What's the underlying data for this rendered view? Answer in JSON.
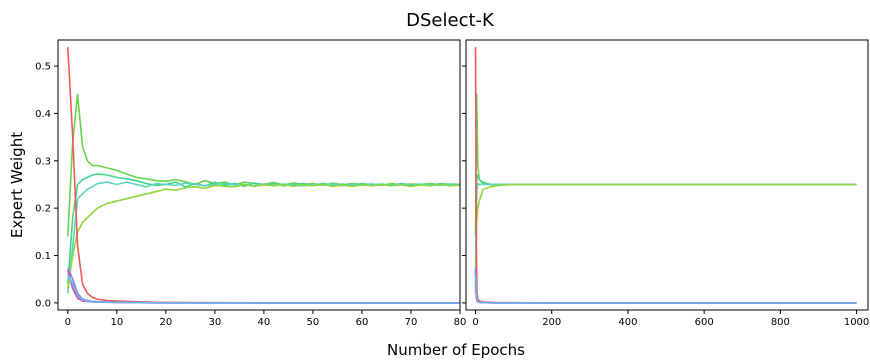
{
  "figure": {
    "title": "DSelect-K",
    "ylabel": "Expert Weight",
    "xlabel": "Number of Epochs"
  },
  "chart_data": [
    {
      "type": "line",
      "xlim": [
        -2,
        80
      ],
      "ylim": [
        -0.015,
        0.555
      ],
      "xticks": [
        0,
        10,
        20,
        30,
        40,
        50,
        60,
        70,
        80
      ],
      "yticks": [
        0.0,
        0.1,
        0.2,
        0.3,
        0.4,
        0.5
      ],
      "ytick_labels": [
        "0.0",
        "0.1",
        "0.2",
        "0.3",
        "0.4",
        "0.5"
      ],
      "grid": false,
      "series": [
        {
          "color": "#66d44a",
          "x": [
            0,
            1,
            2,
            3,
            4,
            5,
            6,
            8,
            10,
            12,
            14,
            16,
            18,
            20,
            22,
            24,
            26,
            28,
            30,
            32,
            34,
            36,
            38,
            40,
            42,
            44,
            46,
            48,
            50,
            52,
            54,
            56,
            58,
            60,
            62,
            64,
            66,
            68,
            70,
            72,
            74,
            76,
            78,
            80
          ],
          "y": [
            0.14,
            0.34,
            0.44,
            0.33,
            0.3,
            0.29,
            0.29,
            0.285,
            0.28,
            0.272,
            0.265,
            0.262,
            0.258,
            0.257,
            0.26,
            0.256,
            0.25,
            0.258,
            0.252,
            0.255,
            0.249,
            0.255,
            0.252,
            0.25,
            0.254,
            0.249,
            0.253,
            0.25,
            0.252,
            0.248,
            0.253,
            0.249,
            0.252,
            0.25,
            0.251,
            0.248,
            0.252,
            0.249,
            0.251,
            0.25,
            0.252,
            0.249,
            0.251,
            0.25
          ]
        },
        {
          "color": "#44d48a",
          "x": [
            0,
            1,
            2,
            3,
            4,
            5,
            6,
            8,
            10,
            12,
            14,
            16,
            18,
            20,
            22,
            24,
            26,
            28,
            30,
            32,
            34,
            36,
            38,
            40,
            42,
            44,
            46,
            48,
            50,
            52,
            54,
            56,
            58,
            60,
            62,
            64,
            66,
            68,
            70,
            72,
            74,
            76,
            78,
            80
          ],
          "y": [
            0.04,
            0.18,
            0.25,
            0.26,
            0.265,
            0.27,
            0.272,
            0.27,
            0.265,
            0.262,
            0.258,
            0.252,
            0.248,
            0.25,
            0.255,
            0.245,
            0.252,
            0.247,
            0.255,
            0.248,
            0.252,
            0.246,
            0.253,
            0.249,
            0.252,
            0.247,
            0.25,
            0.252,
            0.248,
            0.252,
            0.249,
            0.251,
            0.247,
            0.252,
            0.249,
            0.251,
            0.248,
            0.252,
            0.249,
            0.25,
            0.248,
            0.252,
            0.25,
            0.249
          ]
        },
        {
          "color": "#5ad6c0",
          "x": [
            0,
            1,
            2,
            3,
            4,
            5,
            6,
            8,
            10,
            12,
            14,
            16,
            18,
            20,
            22,
            24,
            26,
            28,
            30,
            32,
            34,
            36,
            38,
            40,
            42,
            44,
            46,
            48,
            50,
            52,
            54,
            56,
            58,
            60,
            62,
            64,
            66,
            68,
            70,
            72,
            74,
            76,
            78,
            80
          ],
          "y": [
            0.02,
            0.12,
            0.22,
            0.23,
            0.24,
            0.245,
            0.252,
            0.255,
            0.25,
            0.255,
            0.25,
            0.245,
            0.252,
            0.25,
            0.248,
            0.253,
            0.25,
            0.247,
            0.25,
            0.252,
            0.249,
            0.25,
            0.247,
            0.251,
            0.248,
            0.251,
            0.249,
            0.247,
            0.25,
            0.248,
            0.251,
            0.247,
            0.25,
            0.248,
            0.251,
            0.249,
            0.248,
            0.25,
            0.248,
            0.251,
            0.249,
            0.248,
            0.25,
            0.248
          ]
        },
        {
          "color": "#8fd83c",
          "x": [
            0,
            1,
            2,
            3,
            4,
            5,
            6,
            8,
            10,
            12,
            14,
            16,
            18,
            20,
            22,
            24,
            26,
            28,
            30,
            32,
            34,
            36,
            38,
            40,
            42,
            44,
            46,
            48,
            50,
            52,
            54,
            56,
            58,
            60,
            62,
            64,
            66,
            68,
            70,
            72,
            74,
            76,
            78,
            80
          ],
          "y": [
            0.03,
            0.1,
            0.15,
            0.17,
            0.18,
            0.19,
            0.2,
            0.21,
            0.215,
            0.22,
            0.225,
            0.23,
            0.235,
            0.24,
            0.238,
            0.243,
            0.245,
            0.242,
            0.248,
            0.246,
            0.245,
            0.25,
            0.246,
            0.249,
            0.247,
            0.25,
            0.246,
            0.249,
            0.247,
            0.25,
            0.246,
            0.249,
            0.246,
            0.249,
            0.247,
            0.25,
            0.247,
            0.249,
            0.246,
            0.249,
            0.247,
            0.25,
            0.247,
            0.249
          ]
        },
        {
          "color": "#ee5a5a",
          "x": [
            0,
            1,
            2,
            3,
            4,
            5,
            6,
            8,
            10,
            15,
            20,
            30,
            40,
            50,
            60,
            70,
            80
          ],
          "y": [
            0.54,
            0.35,
            0.12,
            0.04,
            0.02,
            0.012,
            0.008,
            0.005,
            0.004,
            0.002,
            0.001,
            0.0005,
            0.0,
            0.0,
            0.0,
            0.0,
            0.0
          ]
        },
        {
          "color": "#e0458a",
          "x": [
            0,
            1,
            2,
            3,
            5,
            10,
            20,
            40,
            60,
            80
          ],
          "y": [
            0.07,
            0.03,
            0.01,
            0.004,
            0.002,
            0.001,
            0.0,
            0.0,
            0.0,
            0.0
          ]
        },
        {
          "color": "#8a7ff0",
          "x": [
            0,
            1,
            2,
            3,
            5,
            10,
            20,
            40,
            60,
            80
          ],
          "y": [
            0.075,
            0.05,
            0.02,
            0.008,
            0.003,
            0.001,
            0.0,
            0.0,
            0.0,
            0.0
          ]
        },
        {
          "color": "#6ab4f0",
          "x": [
            0,
            1,
            2,
            3,
            5,
            10,
            20,
            40,
            60,
            80
          ],
          "y": [
            0.06,
            0.04,
            0.015,
            0.006,
            0.002,
            0.001,
            0.0,
            0.0,
            0.0,
            0.0
          ]
        }
      ]
    },
    {
      "type": "line",
      "xlim": [
        -25,
        1030
      ],
      "ylim": [
        -0.015,
        0.555
      ],
      "xticks": [
        0,
        200,
        400,
        600,
        800,
        1000
      ],
      "yticks": [
        0.0,
        0.1,
        0.2,
        0.3,
        0.4,
        0.5
      ],
      "ytick_labels": [],
      "grid": false,
      "series": [
        {
          "color": "#66d44a",
          "x": [
            0,
            3,
            6,
            10,
            20,
            40,
            60,
            100,
            150,
            200,
            300,
            400,
            500,
            600,
            700,
            800,
            900,
            1000
          ],
          "y": [
            0.14,
            0.44,
            0.29,
            0.26,
            0.255,
            0.25,
            0.25,
            0.25,
            0.25,
            0.25,
            0.25,
            0.25,
            0.25,
            0.25,
            0.25,
            0.25,
            0.25,
            0.25
          ]
        },
        {
          "color": "#44d48a",
          "x": [
            0,
            3,
            6,
            10,
            20,
            40,
            60,
            100,
            150,
            200,
            300,
            400,
            500,
            600,
            700,
            800,
            900,
            1000
          ],
          "y": [
            0.04,
            0.26,
            0.27,
            0.26,
            0.252,
            0.25,
            0.25,
            0.25,
            0.25,
            0.25,
            0.25,
            0.25,
            0.25,
            0.25,
            0.25,
            0.25,
            0.25,
            0.25
          ]
        },
        {
          "color": "#5ad6c0",
          "x": [
            0,
            3,
            6,
            10,
            20,
            40,
            60,
            100,
            150,
            200,
            300,
            400,
            500,
            600,
            700,
            800,
            900,
            1000
          ],
          "y": [
            0.02,
            0.23,
            0.252,
            0.25,
            0.25,
            0.25,
            0.25,
            0.25,
            0.25,
            0.25,
            0.25,
            0.25,
            0.25,
            0.25,
            0.25,
            0.25,
            0.25,
            0.25
          ]
        },
        {
          "color": "#8fd83c",
          "x": [
            0,
            3,
            6,
            10,
            20,
            40,
            60,
            100,
            150,
            200,
            300,
            400,
            500,
            600,
            700,
            800,
            900,
            1000
          ],
          "y": [
            0.03,
            0.17,
            0.2,
            0.215,
            0.24,
            0.245,
            0.248,
            0.25,
            0.25,
            0.25,
            0.25,
            0.25,
            0.25,
            0.25,
            0.25,
            0.25,
            0.25,
            0.25
          ]
        },
        {
          "color": "#ee5a5a",
          "x": [
            0,
            2,
            4,
            6,
            10,
            20,
            50,
            100,
            200,
            400,
            600,
            800,
            1000
          ],
          "y": [
            0.54,
            0.12,
            0.02,
            0.008,
            0.004,
            0.002,
            0.001,
            0.0005,
            0.0,
            0.0,
            0.0,
            0.0,
            0.0
          ]
        },
        {
          "color": "#e0458a",
          "x": [
            0,
            2,
            4,
            10,
            50,
            200,
            1000
          ],
          "y": [
            0.07,
            0.01,
            0.003,
            0.001,
            0.0,
            0.0,
            0.0
          ]
        },
        {
          "color": "#8a7ff0",
          "x": [
            0,
            2,
            4,
            10,
            50,
            200,
            1000
          ],
          "y": [
            0.075,
            0.02,
            0.004,
            0.001,
            0.0,
            0.0,
            0.0
          ]
        },
        {
          "color": "#6ab4f0",
          "x": [
            0,
            2,
            4,
            10,
            50,
            200,
            1000
          ],
          "y": [
            0.06,
            0.015,
            0.003,
            0.001,
            0.0,
            0.0,
            0.0
          ]
        }
      ]
    }
  ]
}
